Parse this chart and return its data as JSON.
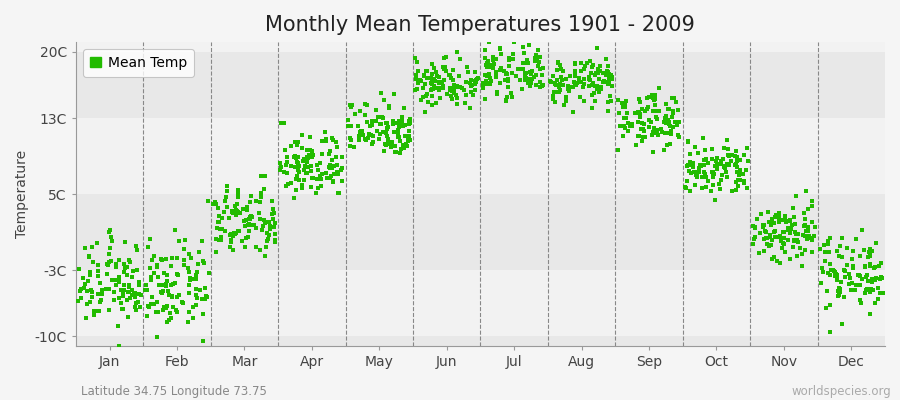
{
  "title": "Monthly Mean Temperatures 1901 - 2009",
  "ylabel": "Temperature",
  "subtitle": "Latitude 34.75 Longitude 73.75",
  "watermark": "worldspecies.org",
  "legend_label": "Mean Temp",
  "dot_color": "#22bb00",
  "background_color": "#f5f5f5",
  "plot_bg_color": "#ebebeb",
  "band_colors": [
    "#e8e8e8",
    "#f2f2f2"
  ],
  "ylim": [
    -11,
    21
  ],
  "yticks": [
    -10,
    -3,
    5,
    13,
    20
  ],
  "ytick_labels": [
    "-10C",
    "-3C",
    "5C",
    "13C",
    "20C"
  ],
  "monthly_means": [
    -4.5,
    -4.8,
    2.0,
    8.0,
    12.0,
    16.8,
    17.8,
    16.8,
    12.8,
    7.5,
    1.0,
    -3.2
  ],
  "monthly_stds": [
    2.2,
    2.3,
    1.9,
    1.7,
    1.5,
    1.3,
    1.2,
    1.2,
    1.4,
    1.5,
    1.7,
    2.0
  ],
  "n_years": 109,
  "months": [
    "Jan",
    "Feb",
    "Mar",
    "Apr",
    "May",
    "Jun",
    "Jul",
    "Aug",
    "Sep",
    "Oct",
    "Nov",
    "Dec"
  ],
  "month_centers": [
    0.5,
    1.5,
    2.5,
    3.5,
    4.5,
    5.5,
    6.5,
    7.5,
    8.5,
    9.5,
    10.5,
    11.5
  ],
  "vline_positions": [
    1.0,
    2.0,
    3.0,
    4.0,
    5.0,
    6.0,
    7.0,
    8.0,
    9.0,
    10.0,
    11.0
  ],
  "title_fontsize": 15,
  "axis_fontsize": 10,
  "tick_fontsize": 10,
  "subtitle_fontsize": 8.5,
  "watermark_fontsize": 8.5,
  "dot_size": 5
}
